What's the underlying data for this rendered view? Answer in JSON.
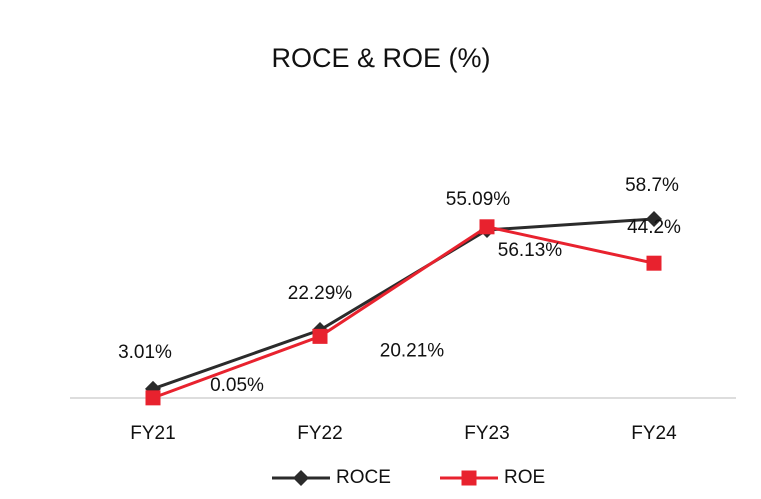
{
  "chart_data": {
    "type": "line",
    "title": "ROCE & ROE (%)",
    "categories": [
      "FY21",
      "FY22",
      "FY23",
      "FY24"
    ],
    "series": [
      {
        "name": "ROCE",
        "color": "#2b2b2b",
        "values": [
          3.01,
          22.29,
          55.09,
          58.7
        ],
        "value_labels": [
          "3.01%",
          "22.29%",
          "55.09%",
          "58.7%"
        ]
      },
      {
        "name": "ROE",
        "color": "#e8222e",
        "values": [
          0.05,
          20.21,
          56.13,
          44.2
        ],
        "value_labels": [
          "0.05%",
          "20.21%",
          "56.13%",
          "44.2%"
        ]
      }
    ],
    "ylim": [
      0,
      80
    ]
  }
}
